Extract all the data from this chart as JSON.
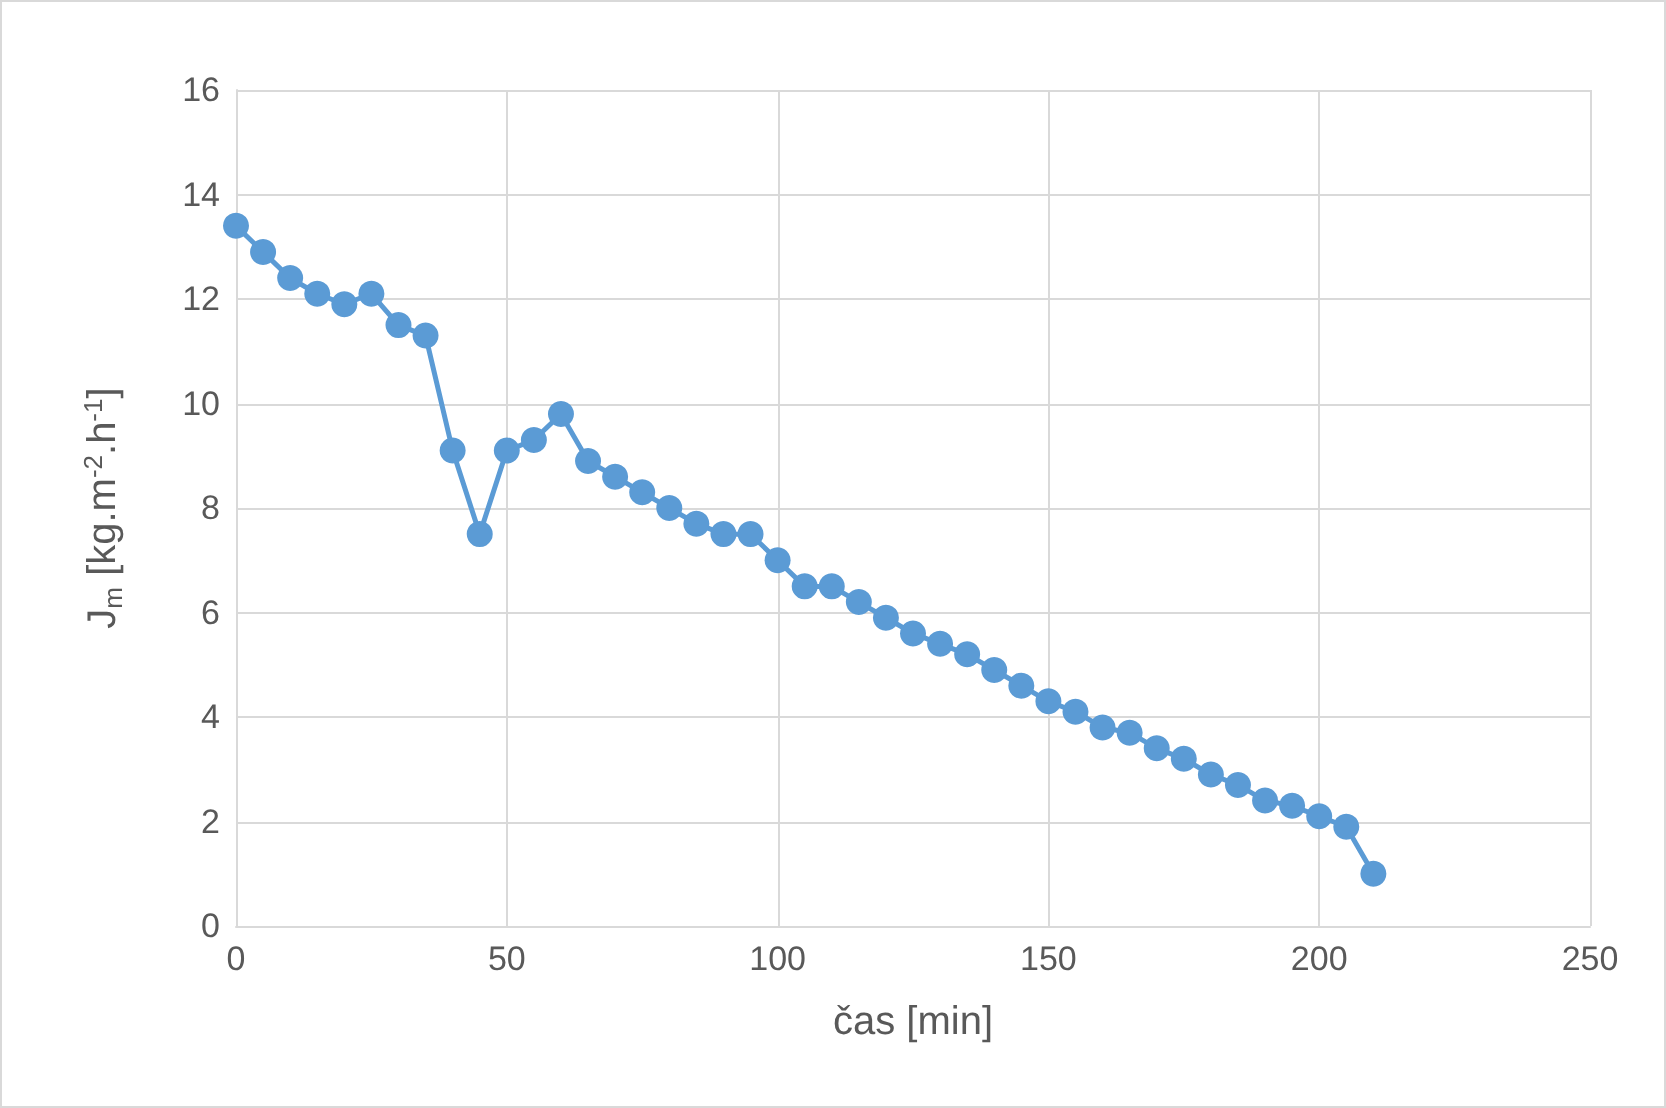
{
  "chart_data": {
    "type": "line",
    "xlabel": "čas [min]",
    "ylabel": "J$_{m}$ [kg.m$^{-2}$.h$^{-1}$]",
    "series": [
      {
        "color": "#5b9bd5",
        "x": [
          0,
          5,
          10,
          15,
          20,
          25,
          30,
          35,
          40,
          45,
          50,
          55,
          60,
          65,
          70,
          75,
          80,
          85,
          90,
          95,
          100,
          105,
          110,
          115,
          120,
          125,
          130,
          135,
          140,
          145,
          150,
          155,
          160,
          165,
          170,
          175,
          180,
          185,
          190,
          195,
          200,
          205,
          210
        ],
        "values": [
          13.4,
          12.9,
          12.4,
          12.1,
          11.9,
          12.1,
          11.5,
          11.3,
          9.1,
          7.5,
          9.1,
          9.3,
          9.8,
          8.9,
          8.6,
          8.3,
          8.0,
          7.7,
          7.5,
          7.5,
          7.0,
          6.5,
          6.5,
          6.2,
          5.9,
          5.6,
          5.4,
          5.2,
          4.9,
          4.6,
          4.3,
          4.1,
          3.8,
          3.7,
          3.4,
          3.2,
          2.9,
          2.7,
          2.4,
          2.3,
          2.1,
          1.9,
          1.0
        ]
      }
    ],
    "xlim": [
      0,
      250
    ],
    "xticks": [
      0,
      50,
      100,
      150,
      200,
      250
    ],
    "ylim": [
      0,
      16
    ],
    "yticks": [
      0,
      2,
      4,
      6,
      8,
      10,
      12,
      14,
      16
    ],
    "grid": true,
    "marker": "circle",
    "line_style": "solid"
  }
}
